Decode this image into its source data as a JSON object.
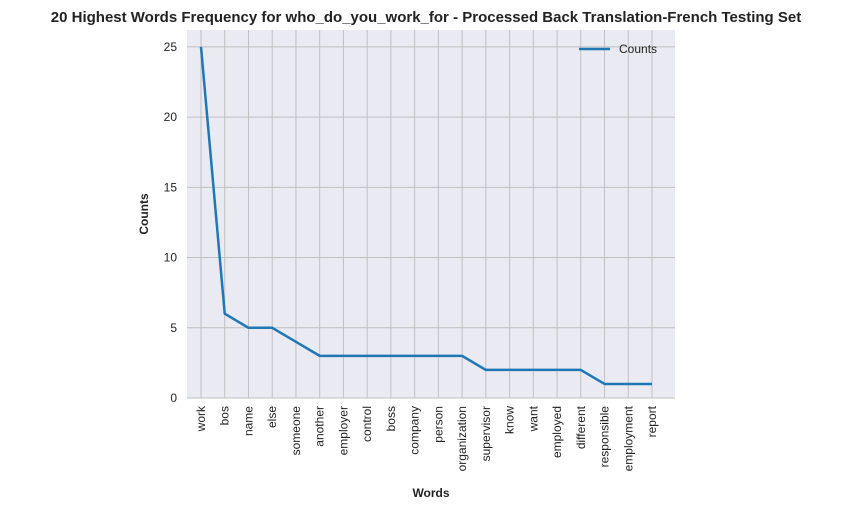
{
  "chart_data": {
    "type": "line",
    "title": "20 Highest Words Frequency for who_do_you_work_for - Processed Back Translation-French Testing Set",
    "xlabel": "Words",
    "ylabel": "Counts",
    "ylim": [
      0,
      26.2
    ],
    "yticks": [
      0,
      5,
      10,
      15,
      20,
      25
    ],
    "grid": true,
    "legend_position": "top-right",
    "colors": {
      "plot_bg": "#eaeaf2",
      "grid": "#c0c0c0",
      "line": "#1f77b4"
    },
    "categories": [
      "work",
      "bos",
      "name",
      "else",
      "someone",
      "another",
      "employer",
      "control",
      "boss",
      "company",
      "person",
      "organization",
      "supervisor",
      "know",
      "want",
      "employed",
      "different",
      "responsible",
      "employment",
      "report"
    ],
    "series": [
      {
        "name": "Counts",
        "values": [
          25,
          6,
          5,
          5,
          4,
          3,
          3,
          3,
          3,
          3,
          3,
          3,
          2,
          2,
          2,
          2,
          2,
          1,
          1,
          1
        ]
      }
    ]
  }
}
